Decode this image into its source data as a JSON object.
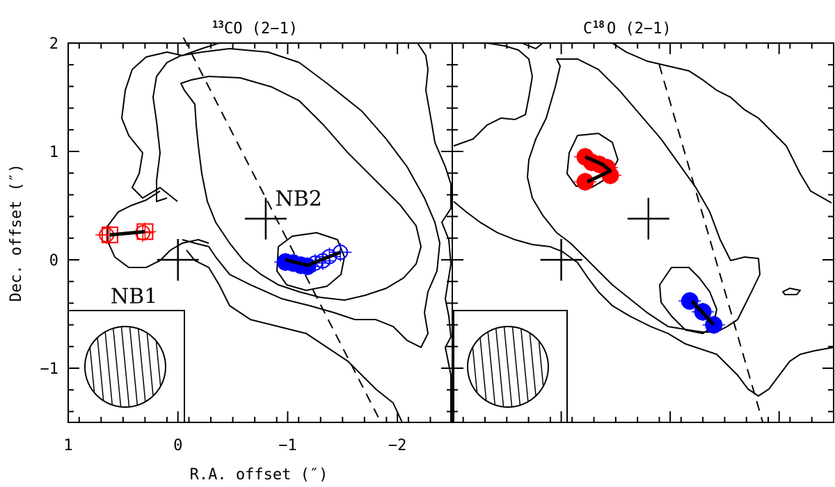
{
  "chart_data": [
    {
      "type": "scatter",
      "title_prefix": "13",
      "title_main": "CO (2−1)",
      "xlabel": "R.A. offset (″)",
      "ylabel": "Dec. offset (″)",
      "xlim": [
        1,
        -2.5
      ],
      "ylim": [
        -1.5,
        2
      ],
      "xticks": [
        "1",
        "0",
        "−1",
        "−2"
      ],
      "xtick_values": [
        1,
        0,
        -1,
        -2
      ],
      "yticks": [
        "2",
        "1",
        "0",
        "−1"
      ],
      "ytick_values": [
        2,
        1,
        0,
        -1
      ],
      "labels": [
        {
          "text": "NB2",
          "x": -1.1,
          "y": 0.5
        },
        {
          "text": "NB1",
          "x": 0.4,
          "y": -0.4
        }
      ],
      "crosses": [
        {
          "name": "NB1",
          "x": 0.0,
          "y": 0.0
        },
        {
          "name": "NB2",
          "x": -0.8,
          "y": 0.38
        }
      ],
      "axis_line": {
        "x": [
          -0.05,
          -1.85
        ],
        "y": [
          2.05,
          -1.5
        ]
      },
      "series": [
        {
          "name": "red-shifted squares",
          "color": "#ff0000",
          "marker": "open-square",
          "x": [
            0.62,
            0.3
          ],
          "y": [
            0.23,
            0.26
          ]
        },
        {
          "name": "red-shifted circles",
          "color": "#ff0000",
          "marker": "open-circle",
          "x": [
            0.65,
            0.32
          ],
          "y": [
            0.23,
            0.25
          ]
        },
        {
          "name": "blue-shifted filled",
          "color": "#0000ff",
          "marker": "filled",
          "x": [
            -0.98,
            -1.05,
            -1.12,
            -1.18
          ],
          "y": [
            -0.02,
            -0.03,
            -0.05,
            -0.06
          ]
        },
        {
          "name": "blue-shifted open",
          "color": "#0000ff",
          "marker": "open-circle",
          "x": [
            -1.25,
            -1.32,
            -1.38,
            -1.48
          ],
          "y": [
            -0.03,
            -0.01,
            0.03,
            0.07
          ]
        }
      ],
      "fit_lines": [
        {
          "x": [
            0.62,
            0.3
          ],
          "y": [
            0.23,
            0.26
          ]
        },
        {
          "x": [
            -0.98,
            -1.18,
            -1.48
          ],
          "y": [
            0.0,
            -0.05,
            0.07
          ]
        }
      ]
    },
    {
      "type": "scatter",
      "title_prefix": "C",
      "title_sup": "18",
      "title_main": "O (2−1)",
      "xlim": [
        1,
        -2.5
      ],
      "ylim": [
        -1.5,
        2
      ],
      "crosses": [
        {
          "name": "NB1",
          "x": 0.0,
          "y": 0.0
        },
        {
          "name": "NB2",
          "x": -0.8,
          "y": 0.38
        }
      ],
      "axis_line": {
        "x": [
          -0.9,
          -1.85
        ],
        "y": [
          1.8,
          -1.5
        ]
      },
      "series": [
        {
          "name": "red-shifted filled",
          "color": "#ff0000",
          "marker": "filled",
          "x": [
            -0.22,
            -0.28,
            -0.35,
            -0.42,
            -0.45,
            -0.22
          ],
          "y": [
            0.95,
            0.9,
            0.88,
            0.85,
            0.78,
            0.72
          ]
        },
        {
          "name": "blue-shifted filled",
          "color": "#0000ff",
          "marker": "filled",
          "x": [
            -1.18,
            -1.3,
            -1.4
          ],
          "y": [
            -0.38,
            -0.48,
            -0.6
          ]
        }
      ],
      "fit_lines": [
        {
          "x": [
            -0.22,
            -0.38,
            -0.45,
            -0.24
          ],
          "y": [
            0.95,
            0.88,
            0.82,
            0.72
          ]
        },
        {
          "x": [
            -1.2,
            -1.4
          ],
          "y": [
            -0.38,
            -0.6
          ]
        }
      ]
    }
  ]
}
